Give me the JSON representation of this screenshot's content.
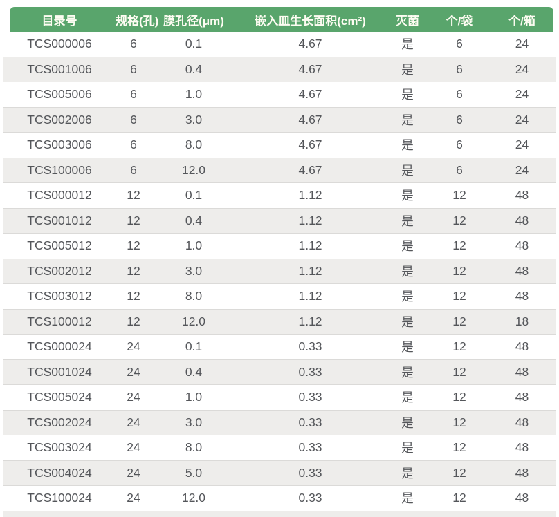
{
  "table": {
    "accent_color": "#59a56c",
    "stripe_color": "#eeedeb",
    "header_text_color": "#fdfcf2",
    "body_text_color": "#54565a",
    "columns": [
      "目录号",
      "规格(孔)",
      "膜孔径(μm)",
      "嵌入皿生长面积(cm²)",
      "灭菌",
      "个/袋",
      "个/箱"
    ],
    "rows": [
      [
        "TCS000006",
        "6",
        "0.1",
        "4.67",
        "是",
        "6",
        "24"
      ],
      [
        "TCS001006",
        "6",
        "0.4",
        "4.67",
        "是",
        "6",
        "24"
      ],
      [
        "TCS005006",
        "6",
        "1.0",
        "4.67",
        "是",
        "6",
        "24"
      ],
      [
        "TCS002006",
        "6",
        "3.0",
        "4.67",
        "是",
        "6",
        "24"
      ],
      [
        "TCS003006",
        "6",
        "8.0",
        "4.67",
        "是",
        "6",
        "24"
      ],
      [
        "TCS100006",
        "6",
        "12.0",
        "4.67",
        "是",
        "6",
        "24"
      ],
      [
        "TCS000012",
        "12",
        "0.1",
        "1.12",
        "是",
        "12",
        "48"
      ],
      [
        "TCS001012",
        "12",
        "0.4",
        "1.12",
        "是",
        "12",
        "48"
      ],
      [
        "TCS005012",
        "12",
        "1.0",
        "1.12",
        "是",
        "12",
        "48"
      ],
      [
        "TCS002012",
        "12",
        "3.0",
        "1.12",
        "是",
        "12",
        "48"
      ],
      [
        "TCS003012",
        "12",
        "8.0",
        "1.12",
        "是",
        "12",
        "48"
      ],
      [
        "TCS100012",
        "12",
        "12.0",
        "1.12",
        "是",
        "12",
        "18"
      ],
      [
        "TCS000024",
        "24",
        "0.1",
        "0.33",
        "是",
        "12",
        "48"
      ],
      [
        "TCS001024",
        "24",
        "0.4",
        "0.33",
        "是",
        "12",
        "48"
      ],
      [
        "TCS005024",
        "24",
        "1.0",
        "0.33",
        "是",
        "12",
        "48"
      ],
      [
        "TCS002024",
        "24",
        "3.0",
        "0.33",
        "是",
        "12",
        "48"
      ],
      [
        "TCS003024",
        "24",
        "8.0",
        "0.33",
        "是",
        "12",
        "48"
      ],
      [
        "TCS004024",
        "24",
        "5.0",
        "0.33",
        "是",
        "12",
        "48"
      ],
      [
        "TCS100024",
        "24",
        "12.0",
        "0.33",
        "是",
        "12",
        "48"
      ]
    ]
  }
}
